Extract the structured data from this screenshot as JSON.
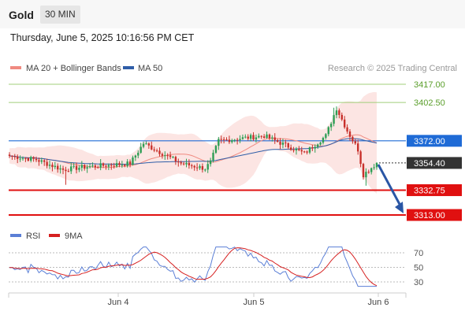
{
  "header": {
    "symbol": "Gold",
    "timeframe": "30 MIN"
  },
  "datetime": "Thursday, June 5, 2025 10:16:56 PM CET",
  "legend": {
    "bb_label": "MA 20 + Bollinger Bands",
    "ma50_label": "MA 50",
    "copyright": "Research © 2025 Trading Central",
    "rsi_label": "RSI",
    "rsi_ma_label": "9MA"
  },
  "colors": {
    "bb": "#f08a80",
    "ma50": "#2f5ea8",
    "up": "#2e9e55",
    "down": "#c8302b",
    "support": "#e01010",
    "resistance": "#a0cf7a",
    "pivot": "#1f6bd6",
    "rsi": "#5b7fd6",
    "rsi_ma": "#d62020",
    "arrow": "#2a56a5"
  },
  "chart_data": [
    {
      "type": "candlestick",
      "title": "Gold",
      "xlabel": "",
      "ylabel": "",
      "x_ticks": [
        "Jun 4",
        "Jun 5",
        "Jun 6"
      ],
      "y_labels": [
        "3417.00",
        "3402.50",
        "3372.00",
        "3354.40",
        "3332.75",
        "3313.00"
      ],
      "ylim": [
        3305,
        3430
      ],
      "last_price": 3354.4,
      "resistances": [
        3417.0,
        3402.5
      ],
      "pivot": 3372.0,
      "supports": [
        3332.75,
        3313.0
      ],
      "close_segments": [
        {
          "from": 0,
          "to": 10,
          "start": 3360,
          "end": 3357
        },
        {
          "from": 10,
          "to": 20,
          "start": 3357,
          "end": 3349
        },
        {
          "from": 20,
          "to": 27,
          "start": 3349,
          "end": 3351
        },
        {
          "from": 27,
          "to": 45,
          "start": 3351,
          "end": 3354
        },
        {
          "from": 45,
          "to": 50,
          "start": 3354,
          "end": 3370
        },
        {
          "from": 50,
          "to": 64,
          "start": 3370,
          "end": 3354
        },
        {
          "from": 64,
          "to": 73,
          "start": 3354,
          "end": 3350
        },
        {
          "from": 73,
          "to": 75,
          "start": 3350,
          "end": 3355
        },
        {
          "from": 75,
          "to": 78,
          "start": 3355,
          "end": 3372
        },
        {
          "from": 78,
          "to": 95,
          "start": 3372,
          "end": 3376
        },
        {
          "from": 95,
          "to": 110,
          "start": 3376,
          "end": 3362
        },
        {
          "from": 110,
          "to": 118,
          "start": 3362,
          "end": 3376
        },
        {
          "from": 118,
          "to": 122,
          "start": 3376,
          "end": 3398
        },
        {
          "from": 122,
          "to": 126,
          "start": 3398,
          "end": 3380
        },
        {
          "from": 126,
          "to": 130,
          "start": 3380,
          "end": 3365
        },
        {
          "from": 130,
          "to": 132,
          "start": 3365,
          "end": 3345
        },
        {
          "from": 132,
          "to": 137,
          "start": 3345,
          "end": 3354.4
        }
      ],
      "rsi": {
        "levels": [
          70,
          50,
          30
        ],
        "ylim": [
          20,
          80
        ]
      }
    }
  ]
}
